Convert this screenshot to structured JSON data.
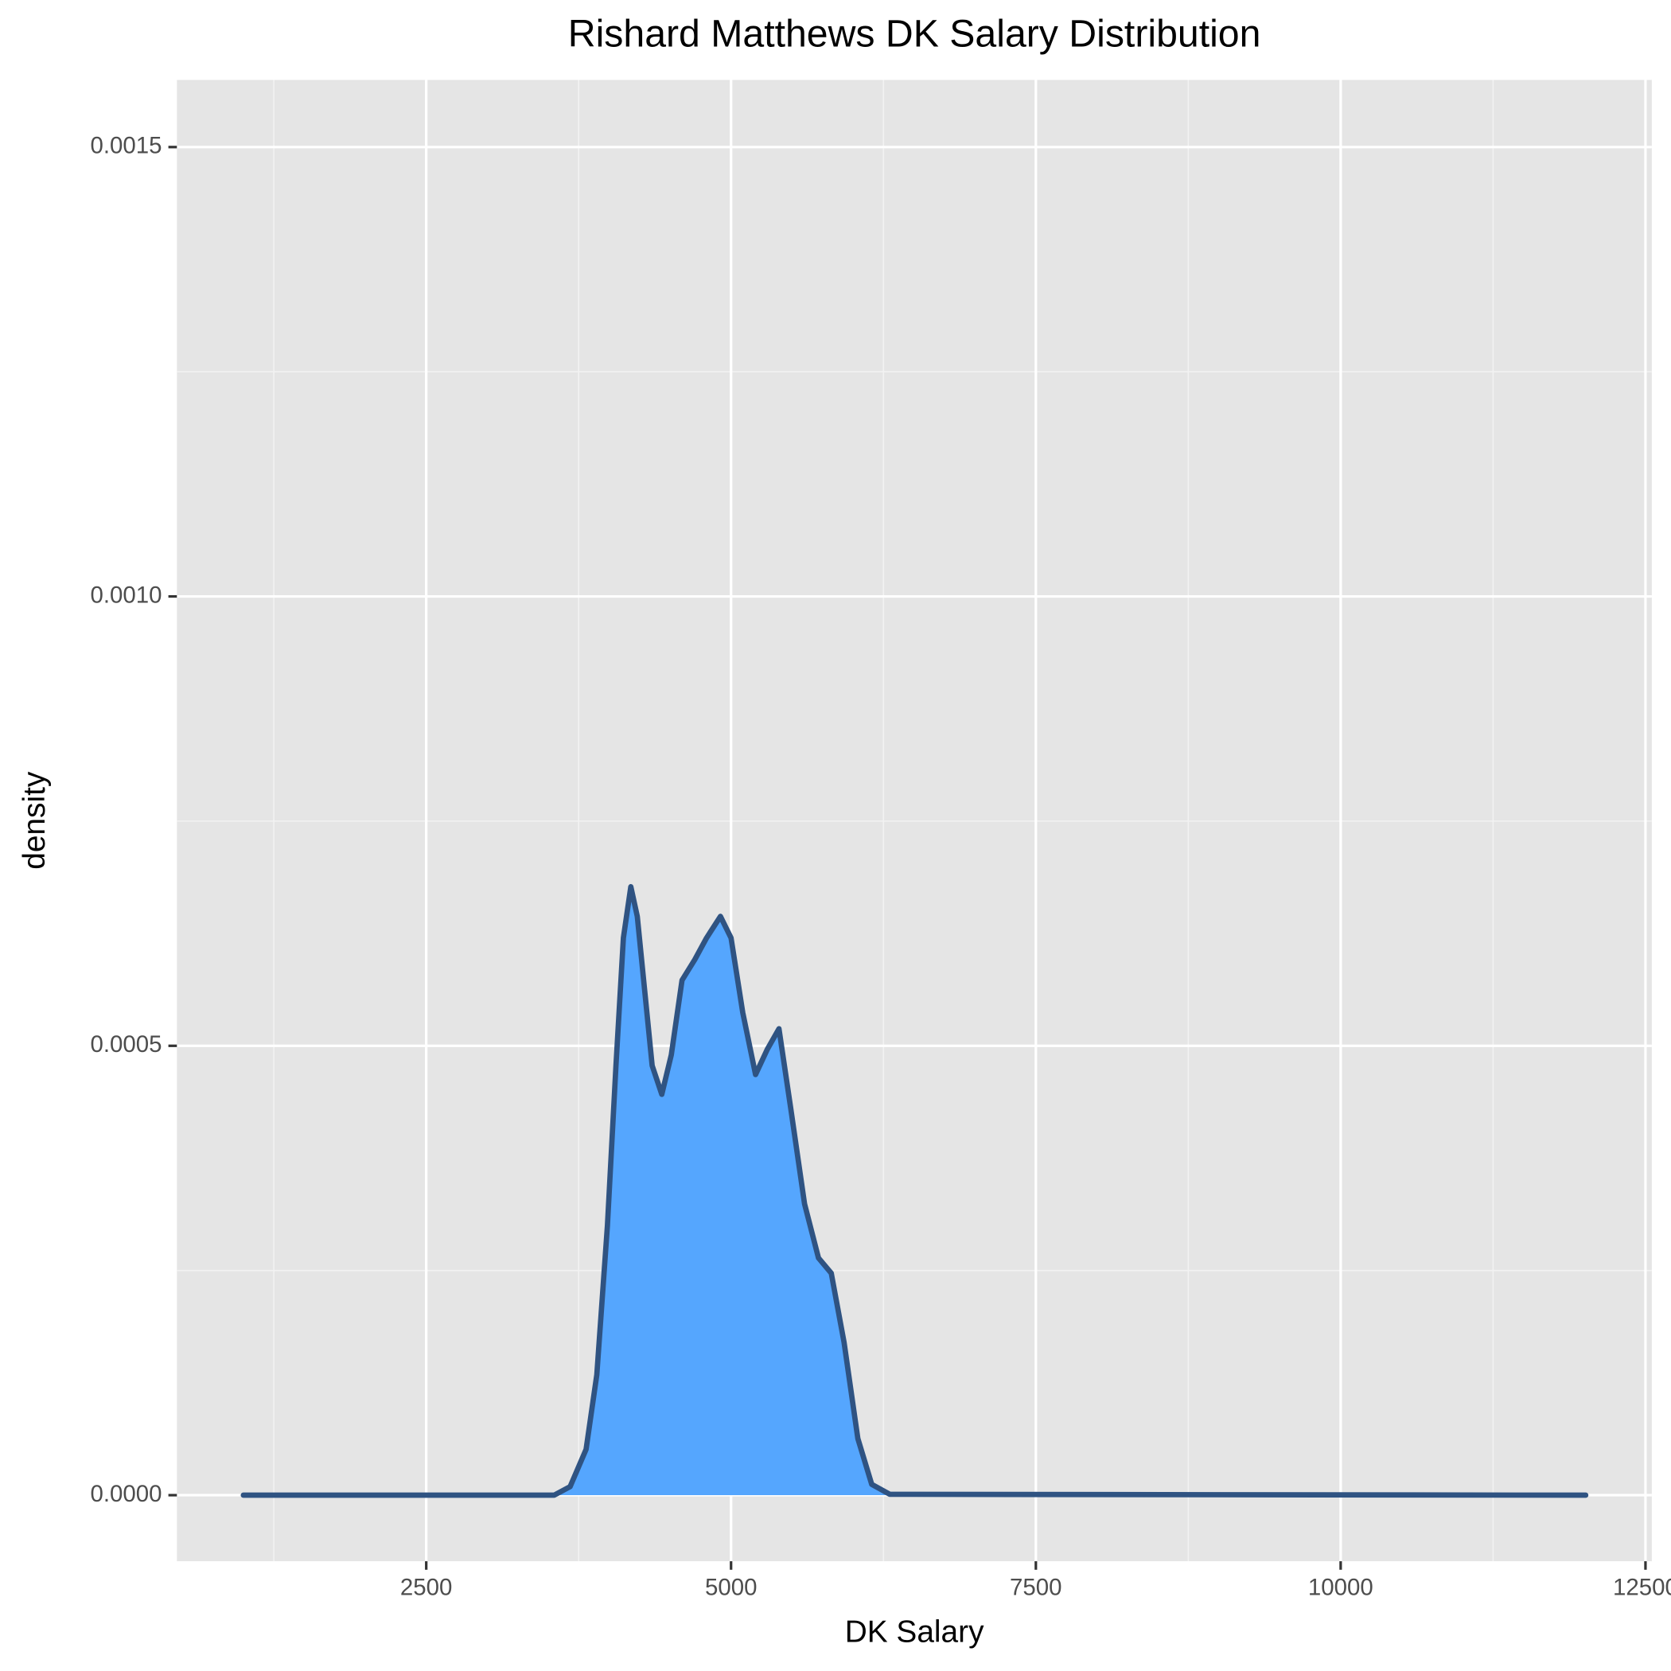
{
  "chart_data": {
    "type": "density",
    "title": "Rishard Matthews DK Salary Distribution",
    "x_label": "DK Salary",
    "y_label": "density",
    "x": [
      1000,
      3549,
      3680,
      3811,
      3899,
      3986,
      4056,
      4117,
      4178,
      4231,
      4292,
      4353,
      4432,
      4510,
      4598,
      4703,
      4799,
      4913,
      5000,
      5096,
      5201,
      5297,
      5393,
      5490,
      5603,
      5717,
      5822,
      5927,
      6040,
      6154,
      6302,
      12010
    ],
    "values": [
      0,
      0,
      9.5e-06,
      5.1e-05,
      0.000134,
      0.0003,
      0.000478,
      0.00062,
      0.000677,
      0.000644,
      0.000561,
      0.000478,
      0.000446,
      0.00049,
      0.000573,
      0.000596,
      0.00062,
      0.000644,
      0.00062,
      0.000537,
      0.000468,
      0.000496,
      0.000519,
      0.00043,
      0.000324,
      0.000264,
      0.000247,
      0.00017,
      6.3e-05,
      1.2e-05,
      1e-06,
      0
    ],
    "color": "#55a6fe",
    "line_color": "#2f5382",
    "xlim": [
      455,
      12552
    ],
    "xticks": [
      2500,
      5000,
      7500,
      10000,
      12500
    ],
    "ylim": [
      -7.35e-05,
      0.0015747
    ],
    "yticks": [
      {
        "value": 0,
        "label": "0.0000"
      },
      {
        "value": 0.0005,
        "label": "0.0005"
      },
      {
        "value": 0.001,
        "label": "0.0010"
      },
      {
        "value": 0.0015,
        "label": "0.0015"
      }
    ],
    "grid": true
  }
}
